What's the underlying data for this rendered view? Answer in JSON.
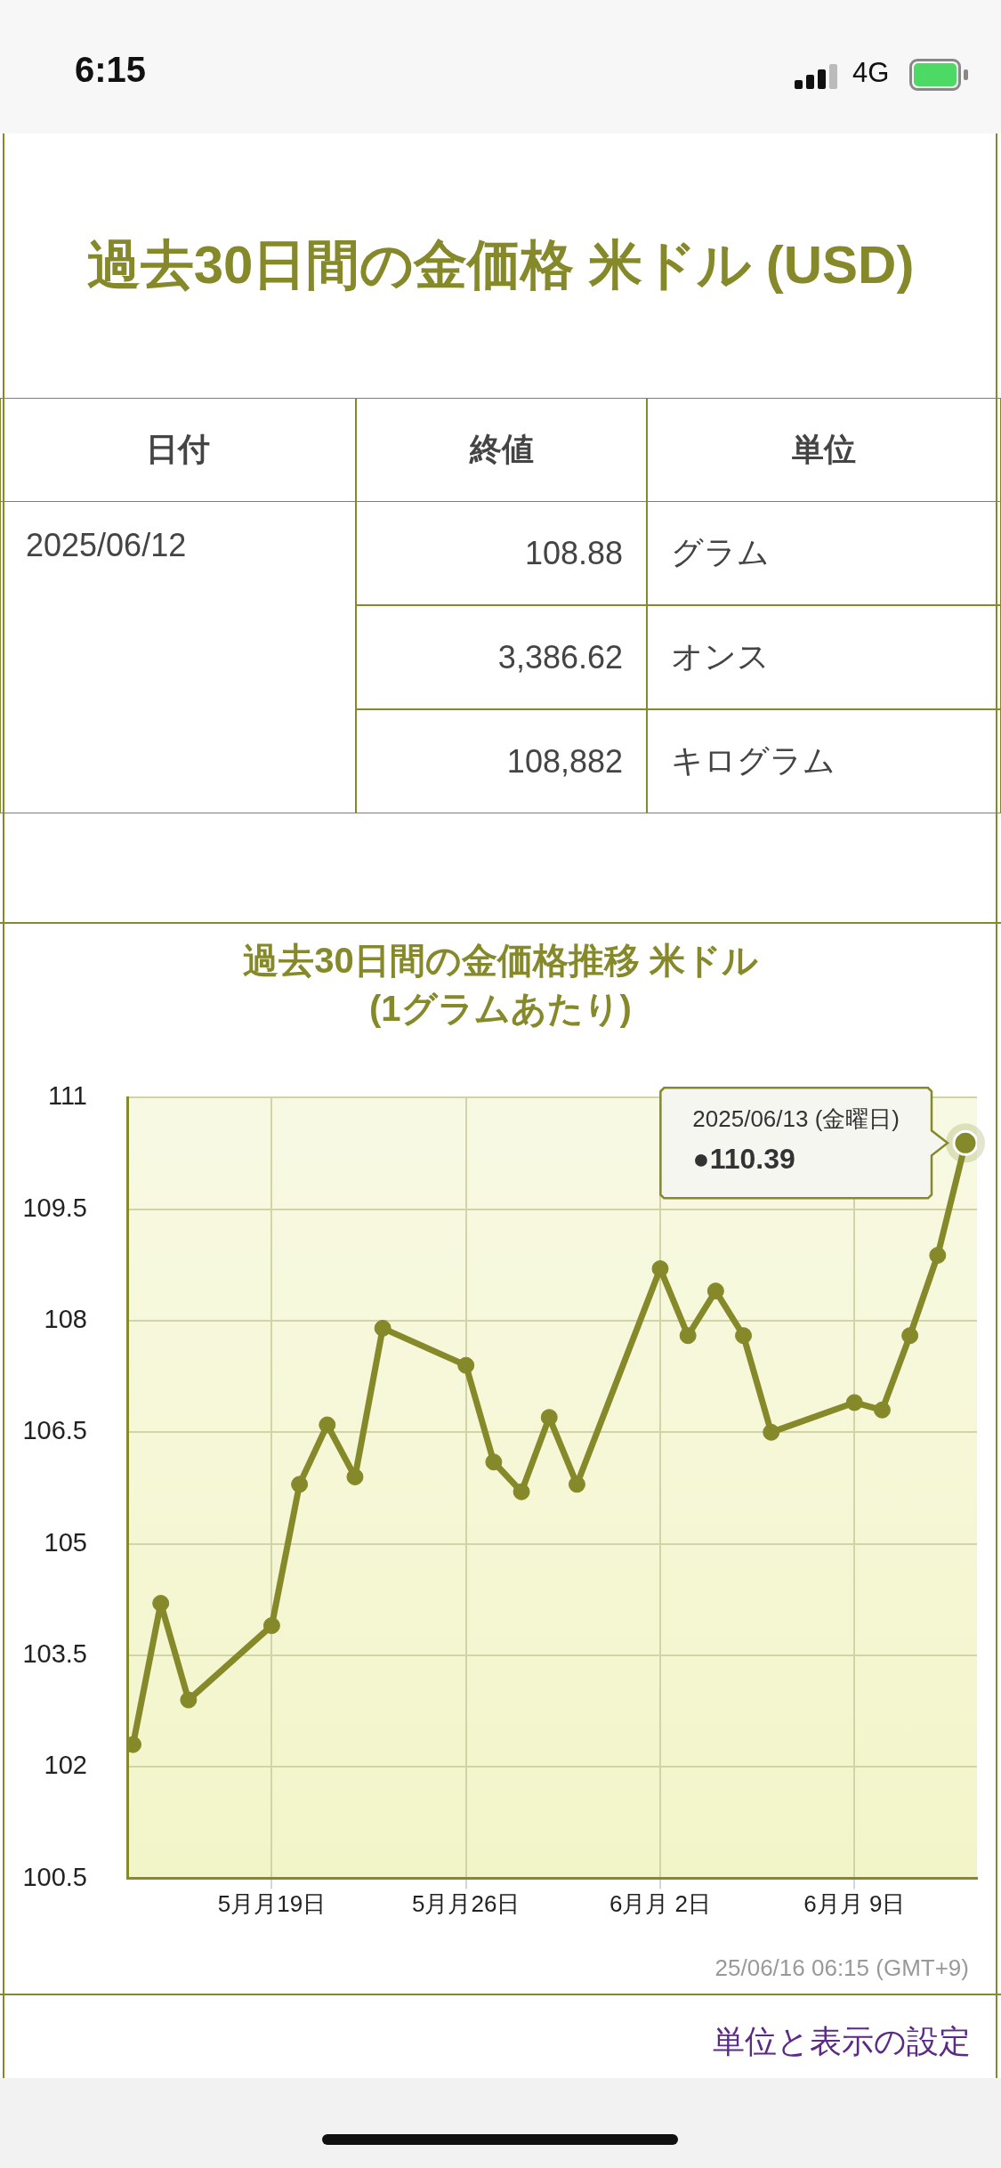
{
  "chart_data": [
    {
      "type": "other",
      "title": "過去30日間の金価格 米ドル (USD)",
      "color": "#85892a",
      "annotations": [
        "日付",
        "終値",
        "単位",
        "2025/06/12",
        "108.88",
        "グラム",
        "3,386.62",
        "オンス",
        "108,882",
        "キログラム",
        "6:15",
        "4G"
      ]
    },
    {
      "type": "line",
      "title": "過去30日間の金価格推移 米ドル\n(1グラムあたり)",
      "color": "#85892a",
      "x": [
        "2025-05-14",
        "2025-05-15",
        "2025-05-16",
        "2025-05-19",
        "2025-05-20",
        "2025-05-21",
        "2025-05-22",
        "2025-05-23",
        "2025-05-26",
        "2025-05-27",
        "2025-05-28",
        "2025-05-29",
        "2025-05-30",
        "2025-06-02",
        "2025-06-03",
        "2025-06-04",
        "2025-06-05",
        "2025-06-06",
        "2025-06-09",
        "2025-06-10",
        "2025-06-11",
        "2025-06-12",
        "2025-06-13"
      ],
      "values": [
        102.3,
        104.2,
        102.9,
        103.9,
        105.8,
        106.6,
        105.9,
        107.9,
        107.4,
        106.1,
        105.7,
        106.7,
        105.8,
        108.7,
        107.8,
        108.4,
        107.8,
        106.5,
        106.9,
        106.8,
        107.8,
        108.88,
        110.39
      ],
      "xlim": [
        "2025-05-13T19:00",
        "2025-06-13T10:00"
      ],
      "xticks": [
        {
          "value": "2025-05-19",
          "label": "5月月19日"
        },
        {
          "value": "2025-05-26",
          "label": "5月月26日"
        },
        {
          "value": "2025-06-02",
          "label": "6月月 2日"
        },
        {
          "value": "2025-06-09",
          "label": "6月月 9日"
        }
      ],
      "ylim": [
        100.5,
        111
      ],
      "yticks": [
        100.5,
        102,
        103.5,
        105,
        106.5,
        108,
        109.5,
        111
      ],
      "grid": true,
      "marker": "circle",
      "line_style": "solid",
      "annotations": [
        {
          "text": "2025/06/13 (金曜日)",
          "x": "2025-06-13",
          "y": 110.39
        },
        "●110.39",
        "25/06/16 06:15 (GMT+9)",
        "単位と表示の設定"
      ]
    }
  ]
}
